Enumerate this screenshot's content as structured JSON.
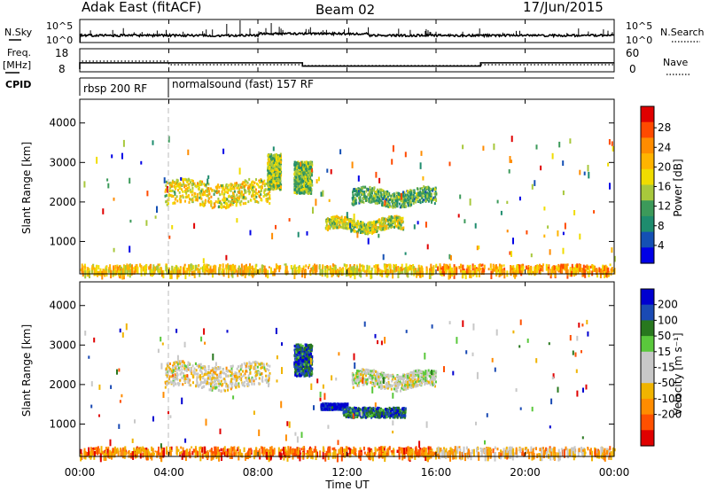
{
  "header": {
    "station": "Adak East (fitACF)",
    "beam": "Beam 02",
    "date": "17/Jun/2015"
  },
  "noise_panel": {
    "left_label": "N.Sky",
    "right_label": "N.Search",
    "left_ticks": [
      "10^5",
      "10^0"
    ],
    "right_ticks": [
      "10^5",
      "10^0"
    ]
  },
  "freq_panel": {
    "left_label_line1": "Freq.",
    "left_label_line2": "[MHz]",
    "right_label": "Nave",
    "left_ticks": [
      "18",
      "8"
    ],
    "right_ticks": [
      "60",
      "0"
    ],
    "freq_steps": [
      {
        "t_start": 0,
        "t_end": 10,
        "mhz": 12.4
      },
      {
        "t_start": 10,
        "t_end": 18,
        "mhz": 10.8
      },
      {
        "t_start": 18,
        "t_end": 24,
        "mhz": 12.4
      }
    ]
  },
  "cpid": {
    "label": "CPID",
    "segments": [
      {
        "t_start": 0,
        "t_end": 4,
        "text": "rbsp 200 RF"
      },
      {
        "t_start": 4,
        "t_end": 24,
        "text": "normalsound (fast) 157 RF"
      }
    ]
  },
  "x_axis": {
    "label": "Time UT",
    "ticks": [
      "00:00",
      "04:00",
      "08:00",
      "12:00",
      "16:00",
      "20:00",
      "00:00"
    ],
    "range_hours": [
      0,
      24
    ]
  },
  "chart_data": [
    {
      "type": "heatmap",
      "name": "Power",
      "ylabel": "Slant Range [km]",
      "ylim": [
        180,
        4600
      ],
      "y_ticks": [
        "1000",
        "2000",
        "3000",
        "4000"
      ],
      "colorbar_label": "Power [dB]",
      "colorbar_ticks": [
        "28",
        "24",
        "20",
        "16",
        "12",
        "8",
        "4"
      ],
      "colorbar_colors": [
        "#e00000",
        "#ff4a00",
        "#ff8c00",
        "#ffb400",
        "#f0dc00",
        "#a8c83c",
        "#3c9a5a",
        "#1e8c6e",
        "#1450b4",
        "#0000e6"
      ],
      "regions": [
        {
          "t": [
            3.8,
            8.5
          ],
          "r": [
            1900,
            2500
          ],
          "level": 0.55
        },
        {
          "t": [
            8.4,
            9.0
          ],
          "r": [
            2300,
            3200
          ],
          "level": 0.45
        },
        {
          "t": [
            11.0,
            14.5
          ],
          "r": [
            1250,
            1550
          ],
          "level": 0.5
        },
        {
          "t": [
            12.2,
            16.0
          ],
          "r": [
            1900,
            2300
          ],
          "level": 0.35
        },
        {
          "t": [
            9.6,
            10.4
          ],
          "r": [
            2200,
            3000
          ],
          "level": 0.4
        },
        {
          "t": [
            0,
            24
          ],
          "r": [
            200,
            400
          ],
          "level": 0.6
        }
      ]
    },
    {
      "type": "heatmap",
      "name": "Velocity",
      "ylabel": "Slant Range [km]",
      "ylim": [
        180,
        4600
      ],
      "y_ticks": [
        "1000",
        "2000",
        "3000",
        "4000"
      ],
      "colorbar_label": "Velocity [m s⁻¹]",
      "colorbar_ticks": [
        "200",
        "100",
        "50",
        "15",
        "-15",
        "-50",
        "-100",
        "-200"
      ],
      "colorbar_colors": [
        "#0000d0",
        "#1a4ab4",
        "#28781e",
        "#5ac83c",
        "#c8c8c8",
        "#c8c8c8",
        "#f0b400",
        "#ff8c00",
        "#ff5000",
        "#e00000"
      ],
      "regions": [
        {
          "t": [
            3.8,
            8.5
          ],
          "r": [
            1900,
            2500
          ],
          "level": -0.1
        },
        {
          "t": [
            10.8,
            12.0
          ],
          "r": [
            1350,
            1500
          ],
          "level": 0.9
        },
        {
          "t": [
            11.8,
            14.6
          ],
          "r": [
            1150,
            1400
          ],
          "level": 0.6
        },
        {
          "t": [
            12.2,
            16.0
          ],
          "r": [
            1900,
            2300
          ],
          "level": 0.0
        },
        {
          "t": [
            9.6,
            10.4
          ],
          "r": [
            2200,
            3000
          ],
          "level": 0.7
        },
        {
          "t": [
            0,
            24
          ],
          "r": [
            200,
            400
          ],
          "level": -0.55
        }
      ]
    }
  ]
}
